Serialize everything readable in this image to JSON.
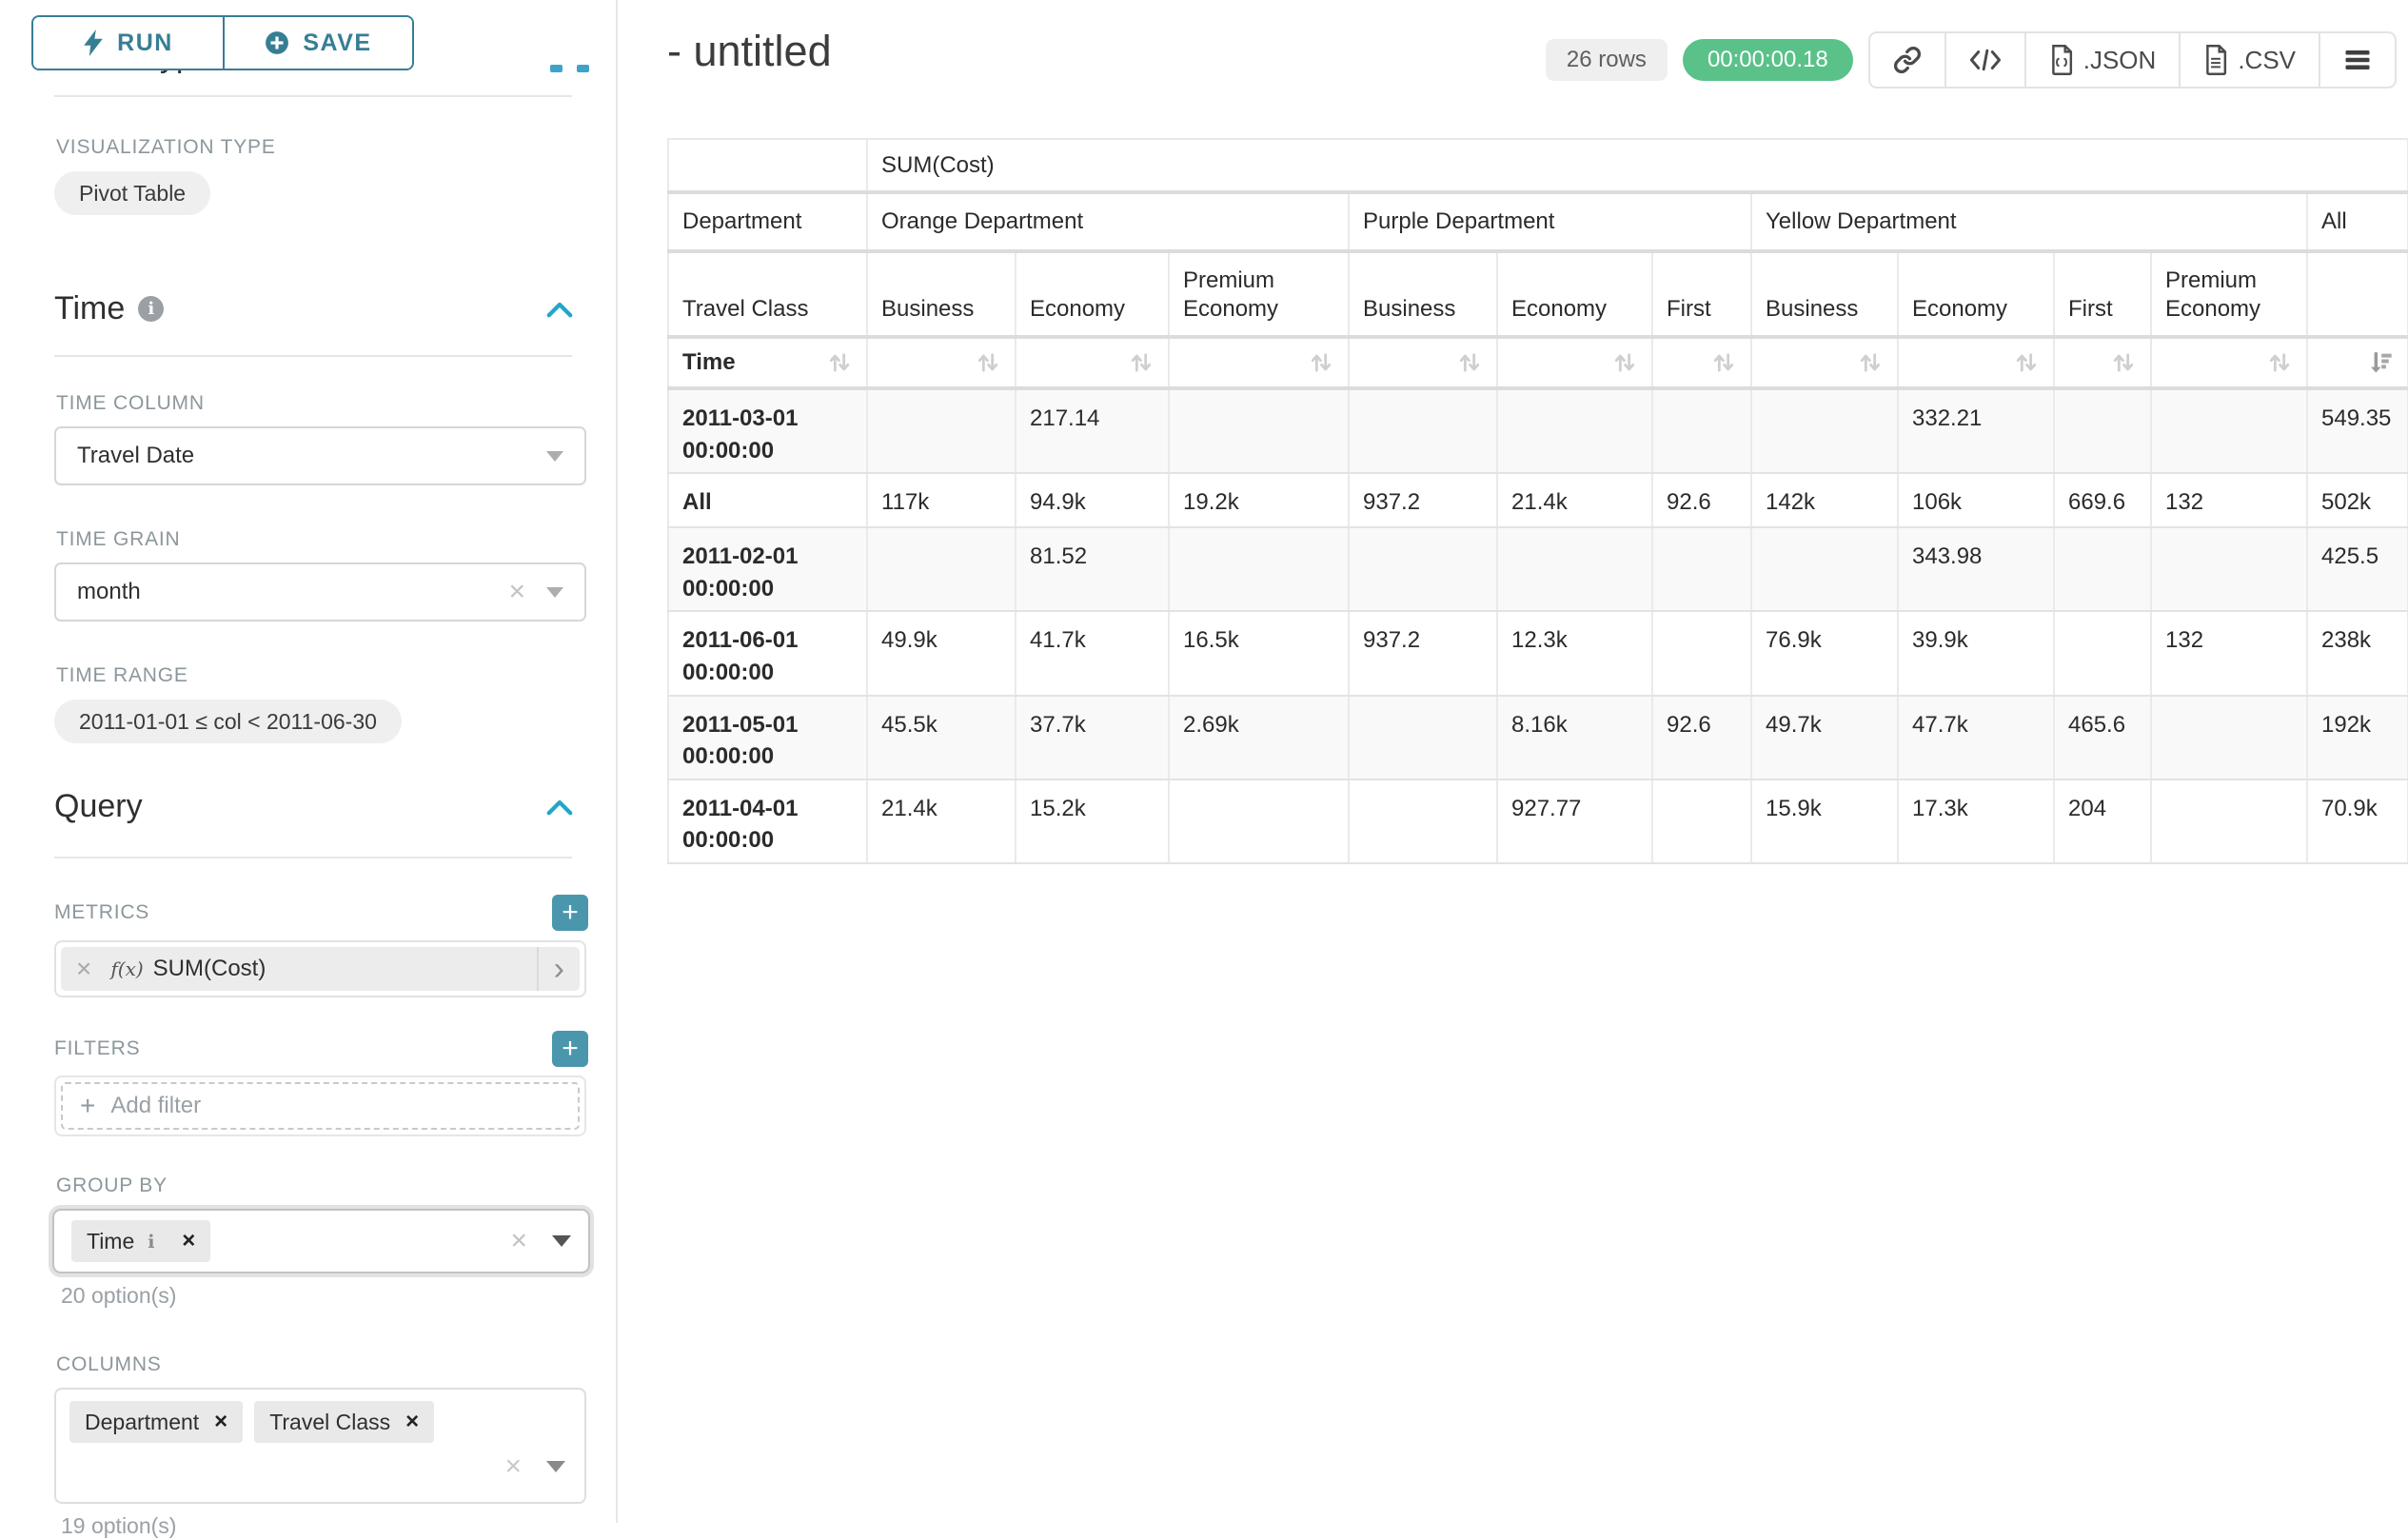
{
  "colors": {
    "primary_teal": "#377E95",
    "add_button_teal": "#4A97AD",
    "section_chevron_blue": "#20A7C9",
    "timer_green": "#5AC189"
  },
  "left_panel": {
    "run_label": "RUN",
    "save_label": "SAVE",
    "chart_type_heading": "Chart Type",
    "visualization_type_label": "VISUALIZATION TYPE",
    "visualization_type_value": "Pivot Table",
    "time_section": {
      "title": "Time",
      "time_column_label": "TIME COLUMN",
      "time_column_value": "Travel Date",
      "time_grain_label": "TIME GRAIN",
      "time_grain_value": "month",
      "time_range_label": "TIME RANGE",
      "time_range_value": "2011-01-01 ≤ col < 2011-06-30"
    },
    "query_section": {
      "title": "Query",
      "metrics_label": "METRICS",
      "metric_prefix": "f(x)",
      "metric_value": "SUM(Cost)",
      "filters_label": "FILTERS",
      "add_filter_label": "Add filter",
      "group_by_label": "GROUP BY",
      "group_by_chips": [
        {
          "label": "Time",
          "info": true
        }
      ],
      "group_by_hint": "20 option(s)",
      "columns_label": "COLUMNS",
      "columns_chips": [
        {
          "label": "Department"
        },
        {
          "label": "Travel Class"
        }
      ],
      "columns_hint": "19 option(s)"
    }
  },
  "header": {
    "title": "- untitled",
    "rows_badge": "26 rows",
    "timer": "00:00:00.18",
    "toolbar": [
      {
        "icon": "link-icon",
        "label": ""
      },
      {
        "icon": "code-icon",
        "label": ""
      },
      {
        "icon": "file-json-icon",
        "label": ".JSON"
      },
      {
        "icon": "file-csv-icon",
        "label": ".CSV"
      },
      {
        "icon": "menu-icon",
        "label": ""
      }
    ]
  },
  "pivot": {
    "metric_header": "SUM(Cost)",
    "department_label": "Department",
    "travel_class_label": "Travel Class",
    "time_label": "Time",
    "groups": [
      {
        "label": "Orange Department",
        "cols": [
          "Business",
          "Economy",
          "Premium Economy"
        ]
      },
      {
        "label": "Purple Department",
        "cols": [
          "Business",
          "Economy",
          "First"
        ]
      },
      {
        "label": "Yellow Department",
        "cols": [
          "Business",
          "Economy",
          "First",
          "Premium Economy"
        ]
      },
      {
        "label": "All",
        "cols": [
          ""
        ]
      }
    ],
    "sorted_desc_col": 10,
    "rows": [
      {
        "label": "2011-03-01 00:00:00",
        "values": [
          "",
          "217.14",
          "",
          "",
          "",
          "",
          "",
          "332.21",
          "",
          "",
          "549.35"
        ]
      },
      {
        "label": "All",
        "values": [
          "117k",
          "94.9k",
          "19.2k",
          "937.2",
          "21.4k",
          "92.6",
          "142k",
          "106k",
          "669.6",
          "132",
          "502k"
        ]
      },
      {
        "label": "2011-02-01 00:00:00",
        "values": [
          "",
          "81.52",
          "",
          "",
          "",
          "",
          "",
          "343.98",
          "",
          "",
          "425.5"
        ]
      },
      {
        "label": "2011-06-01 00:00:00",
        "values": [
          "49.9k",
          "41.7k",
          "16.5k",
          "937.2",
          "12.3k",
          "",
          "76.9k",
          "39.9k",
          "",
          "132",
          "238k"
        ]
      },
      {
        "label": "2011-05-01 00:00:00",
        "values": [
          "45.5k",
          "37.7k",
          "2.69k",
          "",
          "8.16k",
          "92.6",
          "49.7k",
          "47.7k",
          "465.6",
          "",
          "192k"
        ]
      },
      {
        "label": "2011-04-01 00:00:00",
        "values": [
          "21.4k",
          "15.2k",
          "",
          "",
          "927.77",
          "",
          "15.9k",
          "17.3k",
          "204",
          "",
          "70.9k"
        ]
      }
    ]
  }
}
